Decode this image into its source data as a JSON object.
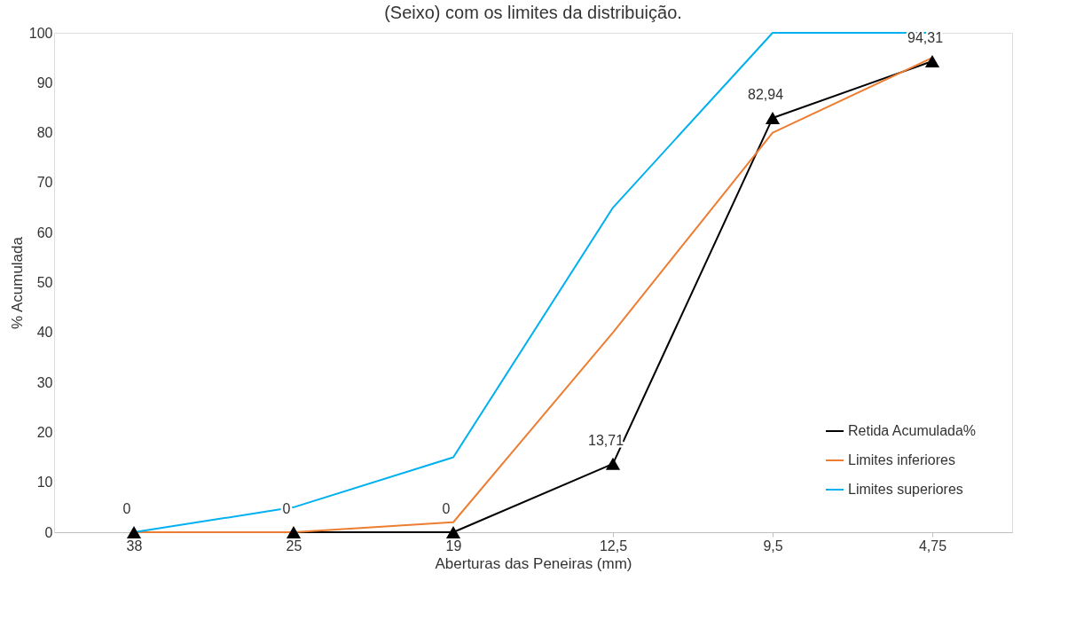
{
  "chart_data": {
    "type": "line",
    "title": "(Seixo) com os limites da distribuição.",
    "xlabel": "Aberturas das Peneiras (mm)",
    "ylabel": "% Acumulada",
    "categories": [
      "38",
      "25",
      "19",
      "12,5",
      "9,5",
      "4,75"
    ],
    "series": [
      {
        "name": "Retida Acumulada%",
        "color": "#000000",
        "marker": "triangle",
        "values": [
          0,
          0,
          0,
          13.71,
          82.94,
          94.31
        ],
        "value_labels": [
          "0",
          "0",
          "0",
          "13,71",
          "82,94",
          "94,31"
        ]
      },
      {
        "name": "Limites inferiores",
        "color": "#ed7d31",
        "marker": "none",
        "values": [
          0,
          0,
          2,
          40,
          80,
          95
        ]
      },
      {
        "name": "Limites superiores",
        "color": "#00b0f0",
        "marker": "none",
        "values": [
          0,
          5,
          15,
          65,
          100,
          100
        ]
      }
    ],
    "ylim": [
      0,
      100
    ],
    "yticks": [
      0,
      10,
      20,
      30,
      40,
      50,
      60,
      70,
      80,
      90,
      100
    ],
    "grid": false,
    "legend": "bottom right"
  }
}
